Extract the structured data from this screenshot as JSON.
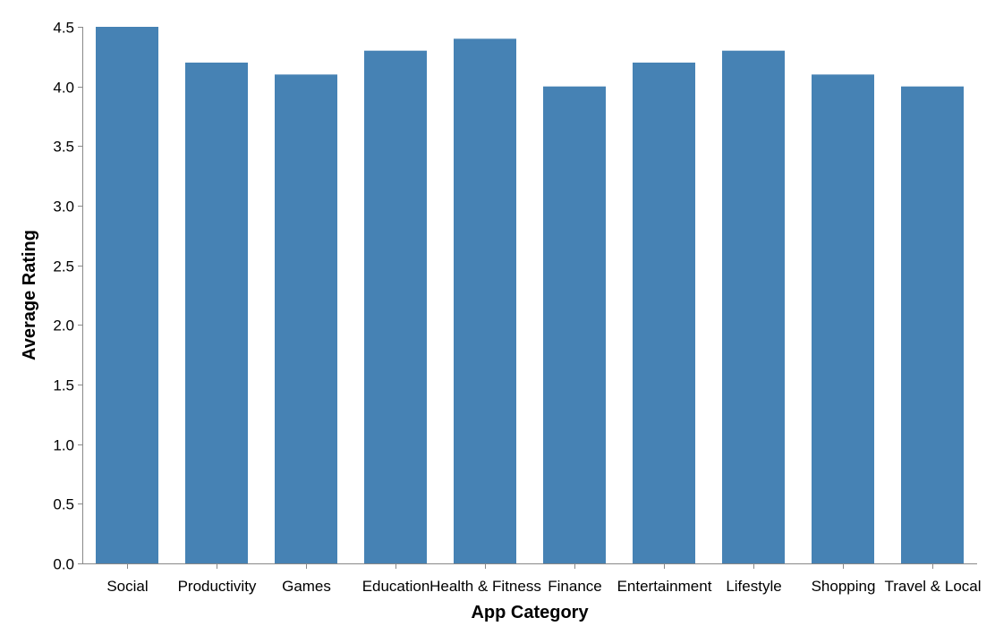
{
  "chart_data": {
    "type": "bar",
    "title": "",
    "xlabel": "App Category",
    "ylabel": "Average Rating",
    "categories": [
      "Social",
      "Productivity",
      "Games",
      "Education",
      "Health & Fitness",
      "Finance",
      "Entertainment",
      "Lifestyle",
      "Shopping",
      "Travel & Local"
    ],
    "values": [
      4.5,
      4.2,
      4.1,
      4.3,
      4.4,
      4.0,
      4.2,
      4.3,
      4.1,
      4.0
    ],
    "ylim": [
      0,
      4.5
    ],
    "yticks": [
      "0.0",
      "0.5",
      "1.0",
      "1.5",
      "2.0",
      "2.5",
      "3.0",
      "3.5",
      "4.0",
      "4.5"
    ],
    "grid": false,
    "legend": "none",
    "bar_color": "#4682b4"
  }
}
